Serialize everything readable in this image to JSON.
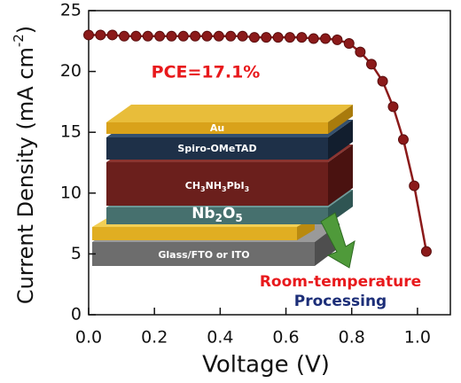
{
  "chart_data": {
    "type": "line",
    "xlabel": "Voltage (V)",
    "ylabel": [
      "Current Density (mA cm",
      "-2",
      ")"
    ],
    "x": [
      0,
      0.036,
      0.072,
      0.108,
      0.144,
      0.18,
      0.216,
      0.252,
      0.288,
      0.324,
      0.36,
      0.396,
      0.432,
      0.468,
      0.504,
      0.54,
      0.576,
      0.612,
      0.648,
      0.684,
      0.72,
      0.756,
      0.792,
      0.826,
      0.86,
      0.894,
      0.926,
      0.957,
      0.99,
      1.027
    ],
    "series": [
      {
        "color": "#8b1a1a",
        "values": [
          23.0,
          23.0,
          23.0,
          22.9,
          22.9,
          22.9,
          22.9,
          22.9,
          22.9,
          22.9,
          22.9,
          22.9,
          22.9,
          22.9,
          22.8,
          22.8,
          22.8,
          22.8,
          22.8,
          22.7,
          22.7,
          22.6,
          22.3,
          21.6,
          20.6,
          19.2,
          17.1,
          14.4,
          10.6,
          5.2
        ]
      }
    ],
    "xlim": [
      0,
      1.1
    ],
    "xticks": [
      {
        "value": 0,
        "label": "0.0"
      },
      {
        "value": 0.2,
        "label": "0.2"
      },
      {
        "value": 0.4,
        "label": "0.4"
      },
      {
        "value": 0.6,
        "label": "0.6"
      },
      {
        "value": 0.8,
        "label": "0.8"
      },
      {
        "value": 1.0,
        "label": "1.0"
      }
    ],
    "ylim": [
      0,
      25
    ],
    "yticks": [
      0,
      5,
      10,
      15,
      20,
      25
    ],
    "annotations": {
      "pce": "PCE=17.1%",
      "au": "Au",
      "spiro": "Spiro-OMeTAD",
      "perovskite": [
        "CH",
        "3",
        "NH",
        "3",
        "PbI",
        "3"
      ],
      "etl": [
        "Nb",
        "2",
        "O",
        "5"
      ],
      "substrate": "Glass/FTO or ITO",
      "process1": "Room-temperature",
      "process2": "Processing"
    }
  }
}
